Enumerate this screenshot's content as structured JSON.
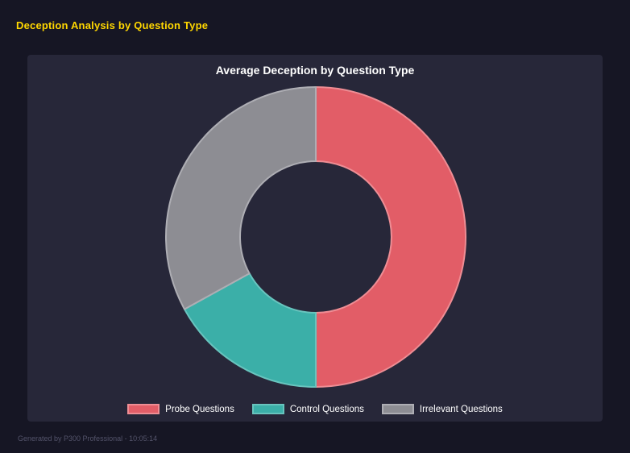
{
  "page": {
    "title": "Deception Analysis by Question Type",
    "footer": "Generated by P300 Professional - 10:05:14"
  },
  "chart_data": {
    "type": "pie",
    "variant": "donut",
    "title": "Average Deception by Question Type",
    "labels": [
      "Probe Questions",
      "Control Questions",
      "Irrelevant Questions"
    ],
    "values": [
      50,
      17,
      33
    ],
    "unit": "percent",
    "colors": [
      "#e25d67",
      "#3bafa8",
      "#8d8d93"
    ],
    "border_colors": [
      "#ee8d94",
      "#68c4be",
      "#aeaeb4"
    ],
    "legend_position": "bottom",
    "start_angle_deg": 0,
    "direction": "clockwise",
    "cutout_percent": 50
  },
  "theme": {
    "page_bg": "#161624",
    "panel_bg": "#272739",
    "page_title_color": "#ffd700",
    "chart_title_color": "#ffffff",
    "legend_text_color": "#ffffff",
    "footer_color": "#53536a"
  }
}
